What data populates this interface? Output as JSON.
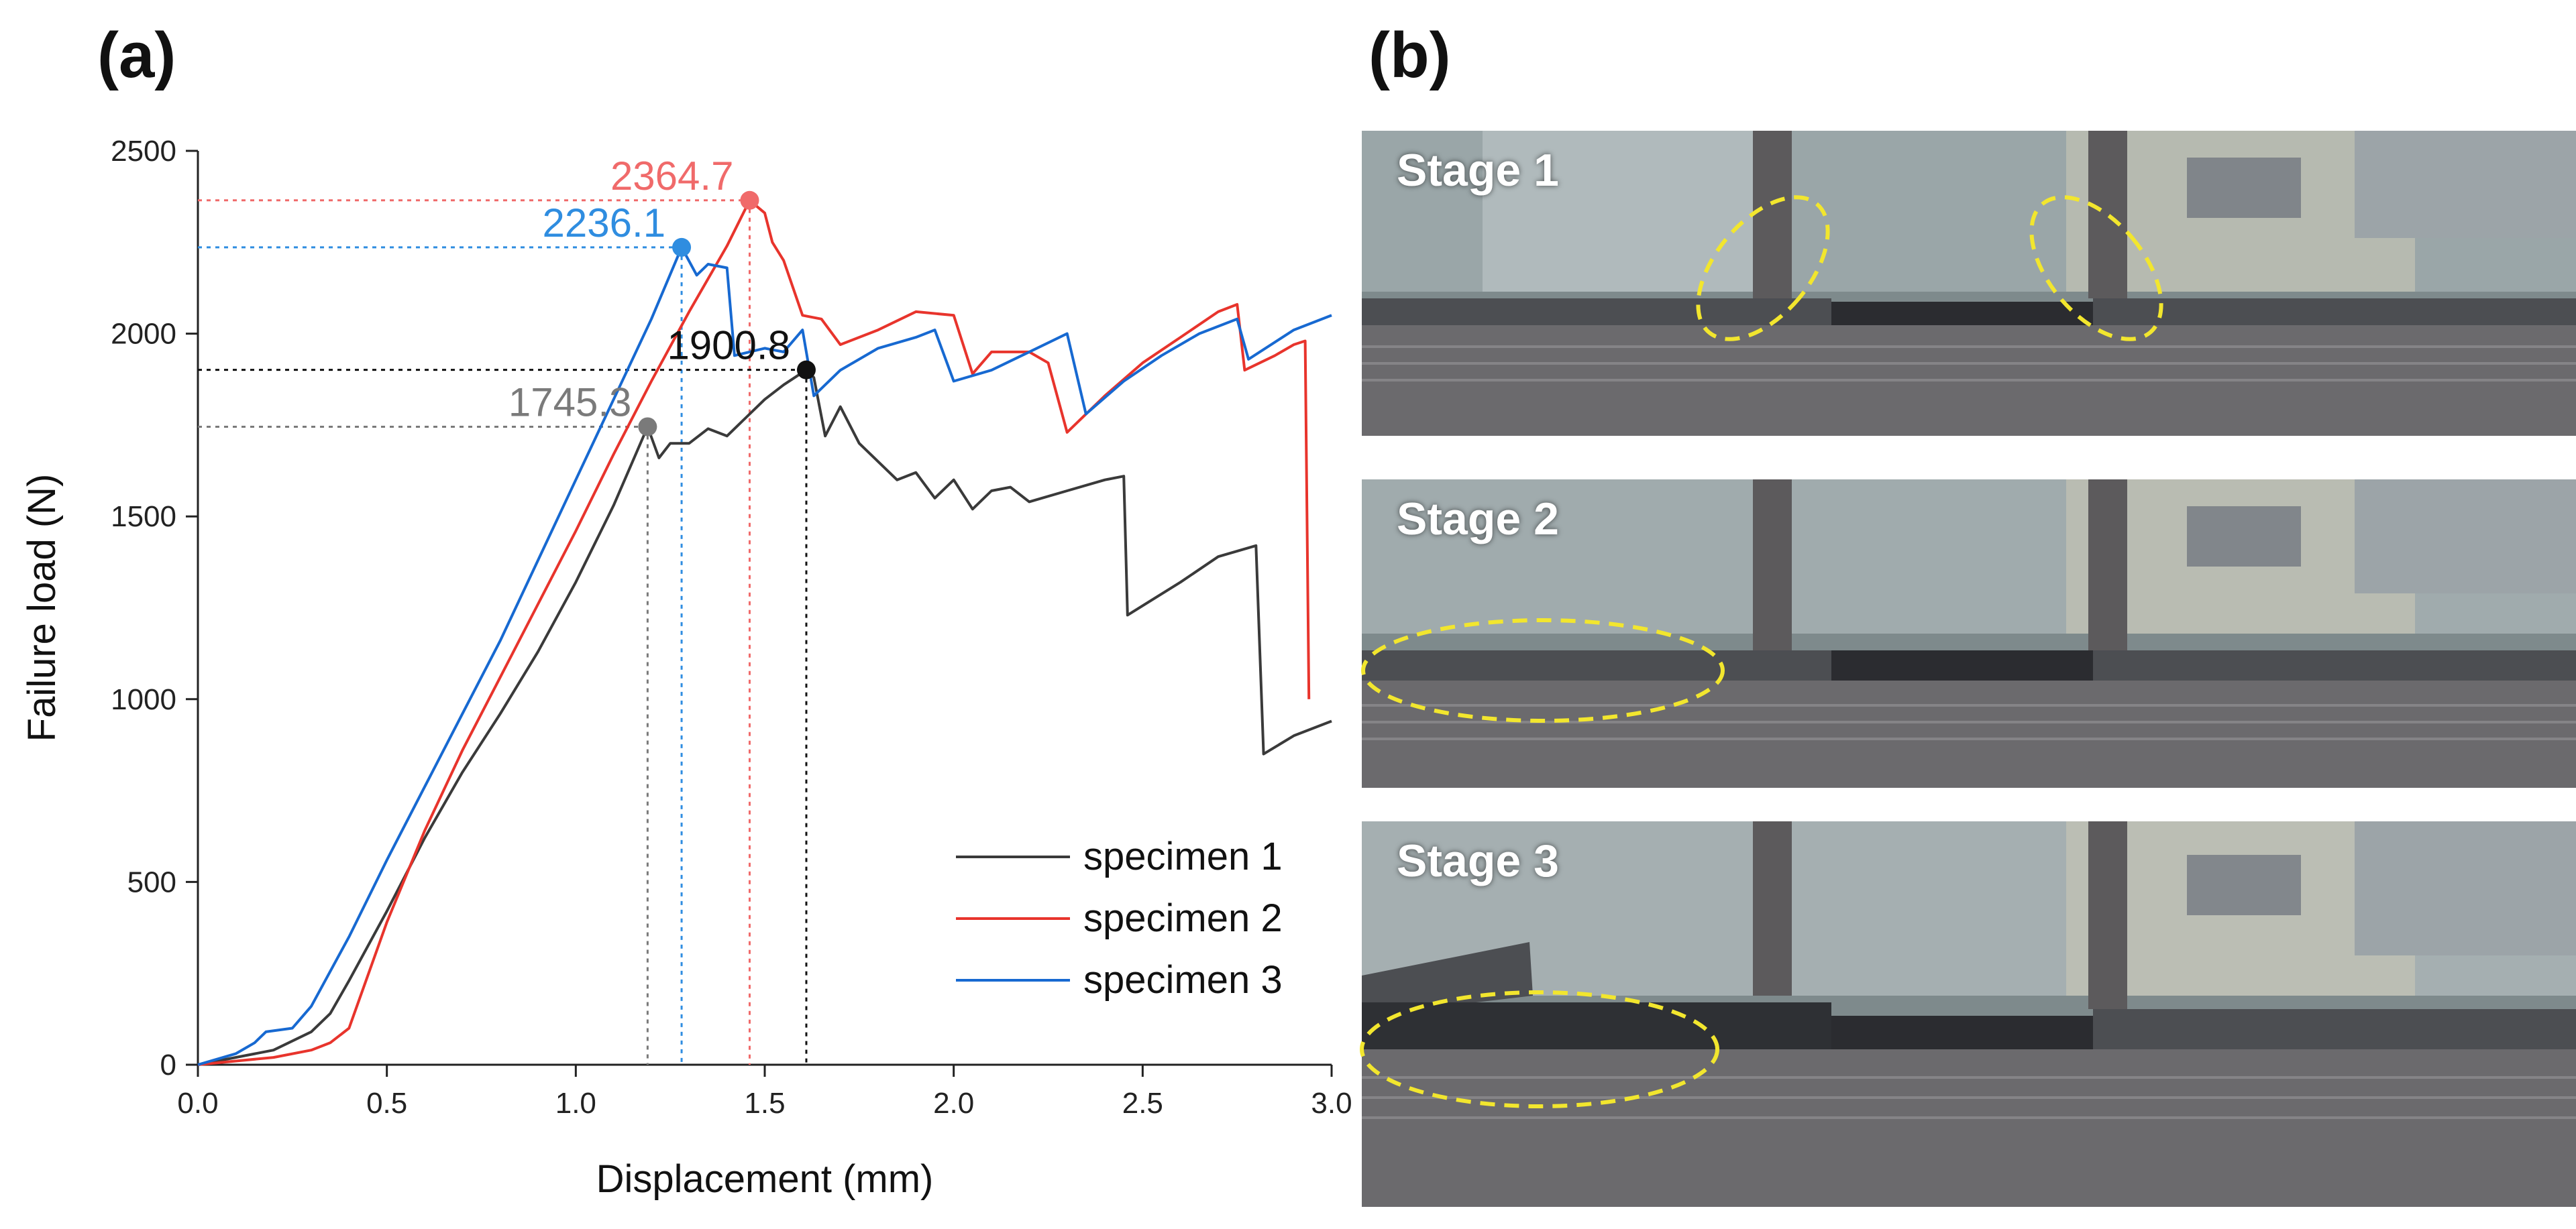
{
  "panel_a_label": "(a)",
  "panel_b_label": "(b)",
  "chart_data": {
    "type": "line",
    "title": "",
    "xlabel": "Displacement (mm)",
    "ylabel": "Failure load (N)",
    "xlim": [
      0,
      3.0
    ],
    "ylim": [
      0,
      2500
    ],
    "xticks": [
      0.0,
      0.5,
      1.0,
      1.5,
      2.0,
      2.5,
      3.0
    ],
    "xtick_labels": [
      "0.0",
      "0.5",
      "1.0",
      "1.5",
      "2.0",
      "2.5",
      "3.0"
    ],
    "yticks": [
      0,
      500,
      1000,
      1500,
      2000,
      2500
    ],
    "ytick_labels": [
      "0",
      "500",
      "1000",
      "1500",
      "2000",
      "2500"
    ],
    "legend_position": "bottom-right",
    "series": [
      {
        "name": "specimen 1",
        "color": "#3a3a3a",
        "points": [
          [
            0,
            0
          ],
          [
            0.1,
            20
          ],
          [
            0.2,
            40
          ],
          [
            0.3,
            90
          ],
          [
            0.35,
            140
          ],
          [
            0.4,
            230
          ],
          [
            0.5,
            420
          ],
          [
            0.6,
            620
          ],
          [
            0.7,
            800
          ],
          [
            0.8,
            960
          ],
          [
            0.9,
            1130
          ],
          [
            1.0,
            1320
          ],
          [
            1.1,
            1530
          ],
          [
            1.19,
            1745.3
          ],
          [
            1.22,
            1660
          ],
          [
            1.25,
            1700
          ],
          [
            1.3,
            1700
          ],
          [
            1.35,
            1740
          ],
          [
            1.4,
            1720
          ],
          [
            1.45,
            1770
          ],
          [
            1.5,
            1820
          ],
          [
            1.55,
            1860
          ],
          [
            1.61,
            1900.8
          ],
          [
            1.63,
            1880
          ],
          [
            1.66,
            1720
          ],
          [
            1.7,
            1800
          ],
          [
            1.75,
            1700
          ],
          [
            1.8,
            1650
          ],
          [
            1.85,
            1600
          ],
          [
            1.9,
            1620
          ],
          [
            1.95,
            1550
          ],
          [
            2.0,
            1600
          ],
          [
            2.05,
            1520
          ],
          [
            2.1,
            1570
          ],
          [
            2.15,
            1580
          ],
          [
            2.2,
            1540
          ],
          [
            2.3,
            1570
          ],
          [
            2.4,
            1600
          ],
          [
            2.45,
            1610
          ],
          [
            2.46,
            1230
          ],
          [
            2.6,
            1320
          ],
          [
            2.7,
            1390
          ],
          [
            2.8,
            1420
          ],
          [
            2.82,
            850
          ],
          [
            2.9,
            900
          ],
          [
            3.0,
            940
          ]
        ]
      },
      {
        "name": "specimen 2",
        "color": "#e8342c",
        "points": [
          [
            0,
            0
          ],
          [
            0.1,
            10
          ],
          [
            0.2,
            20
          ],
          [
            0.3,
            40
          ],
          [
            0.35,
            60
          ],
          [
            0.4,
            100
          ],
          [
            0.5,
            390
          ],
          [
            0.6,
            640
          ],
          [
            0.7,
            860
          ],
          [
            0.8,
            1060
          ],
          [
            0.9,
            1260
          ],
          [
            1.0,
            1460
          ],
          [
            1.1,
            1670
          ],
          [
            1.2,
            1870
          ],
          [
            1.3,
            2060
          ],
          [
            1.4,
            2240
          ],
          [
            1.46,
            2364.7
          ],
          [
            1.5,
            2330
          ],
          [
            1.52,
            2250
          ],
          [
            1.55,
            2200
          ],
          [
            1.6,
            2050
          ],
          [
            1.65,
            2040
          ],
          [
            1.7,
            1970
          ],
          [
            1.8,
            2010
          ],
          [
            1.9,
            2060
          ],
          [
            2.0,
            2050
          ],
          [
            2.05,
            1890
          ],
          [
            2.1,
            1950
          ],
          [
            2.2,
            1950
          ],
          [
            2.25,
            1920
          ],
          [
            2.3,
            1730
          ],
          [
            2.4,
            1830
          ],
          [
            2.5,
            1920
          ],
          [
            2.6,
            1990
          ],
          [
            2.7,
            2060
          ],
          [
            2.75,
            2080
          ],
          [
            2.77,
            1900
          ],
          [
            2.85,
            1940
          ],
          [
            2.9,
            1970
          ],
          [
            2.93,
            1980
          ],
          [
            2.94,
            1000
          ]
        ]
      },
      {
        "name": "specimen 3",
        "color": "#1769d1",
        "points": [
          [
            0,
            0
          ],
          [
            0.1,
            30
          ],
          [
            0.15,
            60
          ],
          [
            0.18,
            90
          ],
          [
            0.25,
            100
          ],
          [
            0.3,
            160
          ],
          [
            0.4,
            350
          ],
          [
            0.5,
            560
          ],
          [
            0.6,
            760
          ],
          [
            0.7,
            960
          ],
          [
            0.8,
            1160
          ],
          [
            0.9,
            1380
          ],
          [
            1.0,
            1600
          ],
          [
            1.1,
            1820
          ],
          [
            1.2,
            2040
          ],
          [
            1.28,
            2236.1
          ],
          [
            1.32,
            2160
          ],
          [
            1.35,
            2190
          ],
          [
            1.4,
            2180
          ],
          [
            1.42,
            1940
          ],
          [
            1.5,
            1960
          ],
          [
            1.55,
            1950
          ],
          [
            1.6,
            2010
          ],
          [
            1.63,
            1830
          ],
          [
            1.7,
            1900
          ],
          [
            1.8,
            1960
          ],
          [
            1.9,
            1990
          ],
          [
            1.95,
            2010
          ],
          [
            2.0,
            1870
          ],
          [
            2.1,
            1900
          ],
          [
            2.2,
            1950
          ],
          [
            2.3,
            2000
          ],
          [
            2.35,
            1780
          ],
          [
            2.45,
            1870
          ],
          [
            2.55,
            1940
          ],
          [
            2.65,
            2000
          ],
          [
            2.75,
            2040
          ],
          [
            2.78,
            1930
          ],
          [
            2.9,
            2010
          ],
          [
            3.0,
            2050
          ]
        ]
      }
    ],
    "annotations": [
      {
        "label": "2364.7",
        "x": 1.46,
        "y": 2364.7,
        "color": "#f06a6a"
      },
      {
        "label": "2236.1",
        "x": 1.28,
        "y": 2236.1,
        "color": "#2f8de0"
      },
      {
        "label": "1900.8",
        "x": 1.61,
        "y": 1900.8,
        "color": "#111111"
      },
      {
        "label": "1745.3",
        "x": 1.19,
        "y": 1745.3,
        "color": "#7a7a7a"
      }
    ]
  },
  "photo_panel": {
    "stages": [
      {
        "label": "Stage 1"
      },
      {
        "label": "Stage 2"
      },
      {
        "label": "Stage 3"
      }
    ],
    "highlight_color": "#f2e62e"
  }
}
